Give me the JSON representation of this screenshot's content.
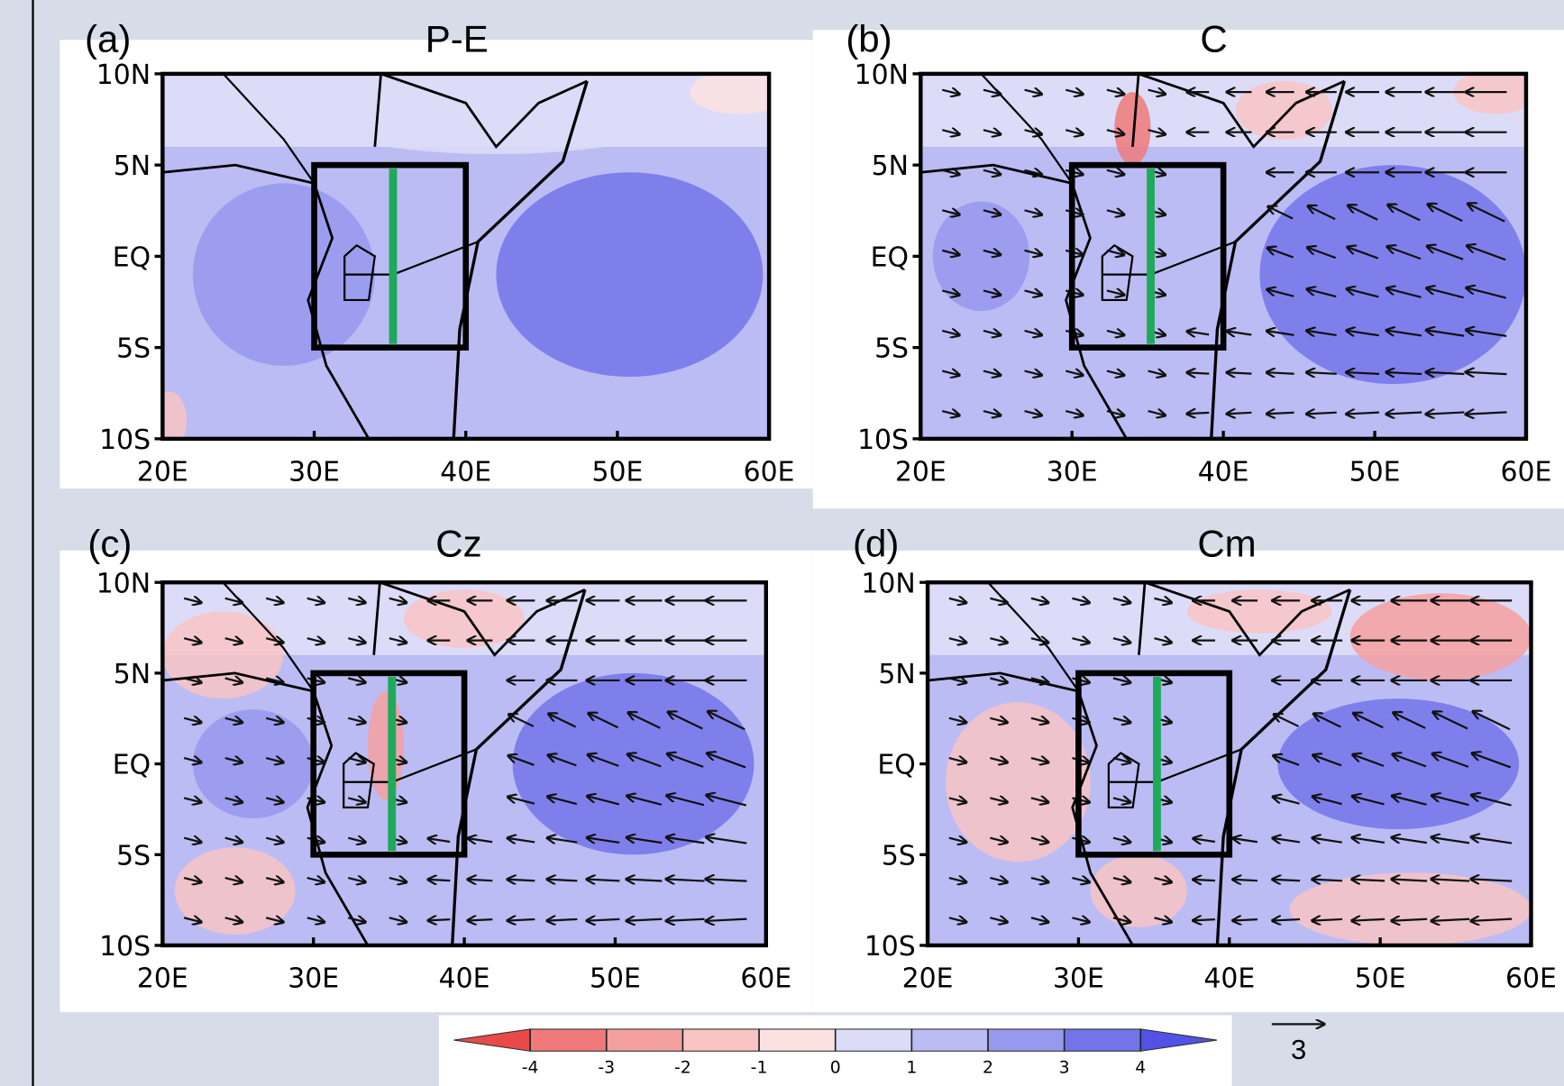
{
  "chart_data": [
    {
      "type": "map",
      "panel_label": "(a)",
      "title": "P-E",
      "xlim": [
        20,
        60
      ],
      "ylim": [
        -10,
        10
      ],
      "xticks": [
        {
          "value": 20,
          "label": "20E"
        },
        {
          "value": 30,
          "label": "30E"
        },
        {
          "value": 40,
          "label": "40E"
        },
        {
          "value": 50,
          "label": "50E"
        },
        {
          "value": 60,
          "label": "60E"
        }
      ],
      "yticks": [
        {
          "value": 10,
          "label": "10N"
        },
        {
          "value": 5,
          "label": "5N"
        },
        {
          "value": 0,
          "label": "EQ"
        },
        {
          "value": -5,
          "label": "5S"
        },
        {
          "value": -10,
          "label": "10S"
        }
      ],
      "vectors": false
    },
    {
      "type": "map",
      "panel_label": "(b)",
      "title": "C",
      "xlim": [
        20,
        60
      ],
      "ylim": [
        -10,
        10
      ],
      "xticks": [
        {
          "value": 20,
          "label": "20E"
        },
        {
          "value": 30,
          "label": "30E"
        },
        {
          "value": 40,
          "label": "40E"
        },
        {
          "value": 50,
          "label": "50E"
        },
        {
          "value": 60,
          "label": "60E"
        }
      ],
      "yticks": [
        {
          "value": 10,
          "label": "10N"
        },
        {
          "value": 5,
          "label": "5N"
        },
        {
          "value": 0,
          "label": "EQ"
        },
        {
          "value": -5,
          "label": "5S"
        },
        {
          "value": -10,
          "label": "10S"
        }
      ],
      "vectors": true
    },
    {
      "type": "map",
      "panel_label": "(c)",
      "title": "Cz",
      "xlim": [
        20,
        60
      ],
      "ylim": [
        -10,
        10
      ],
      "xticks": [
        {
          "value": 20,
          "label": "20E"
        },
        {
          "value": 30,
          "label": "30E"
        },
        {
          "value": 40,
          "label": "40E"
        },
        {
          "value": 50,
          "label": "50E"
        },
        {
          "value": 60,
          "label": "60E"
        }
      ],
      "yticks": [
        {
          "value": 10,
          "label": "10N"
        },
        {
          "value": 5,
          "label": "5N"
        },
        {
          "value": 0,
          "label": "EQ"
        },
        {
          "value": -5,
          "label": "5S"
        },
        {
          "value": -10,
          "label": "10S"
        }
      ],
      "vectors": true
    },
    {
      "type": "map",
      "panel_label": "(d)",
      "title": "Cm",
      "xlim": [
        20,
        60
      ],
      "ylim": [
        -10,
        10
      ],
      "xticks": [
        {
          "value": 20,
          "label": "20E"
        },
        {
          "value": 30,
          "label": "30E"
        },
        {
          "value": 40,
          "label": "40E"
        },
        {
          "value": 50,
          "label": "50E"
        },
        {
          "value": 60,
          "label": "60E"
        }
      ],
      "yticks": [
        {
          "value": 10,
          "label": "10N"
        },
        {
          "value": 5,
          "label": "5N"
        },
        {
          "value": 0,
          "label": "EQ"
        },
        {
          "value": -5,
          "label": "5S"
        },
        {
          "value": -10,
          "label": "10S"
        }
      ],
      "vectors": true
    }
  ],
  "colorbar": {
    "lim": [
      -5,
      5
    ],
    "ticks": [
      -4,
      -3,
      -2,
      -1,
      0,
      1,
      2,
      3,
      4
    ],
    "colors": [
      "#e84a4a",
      "#f07a7a",
      "#f5a0a0",
      "#f8c4c4",
      "#fbe2e2",
      "#dcdcf8",
      "#bcbcf4",
      "#9898ee",
      "#7474ea",
      "#5252e6"
    ]
  },
  "vector_key": {
    "label": 3
  }
}
